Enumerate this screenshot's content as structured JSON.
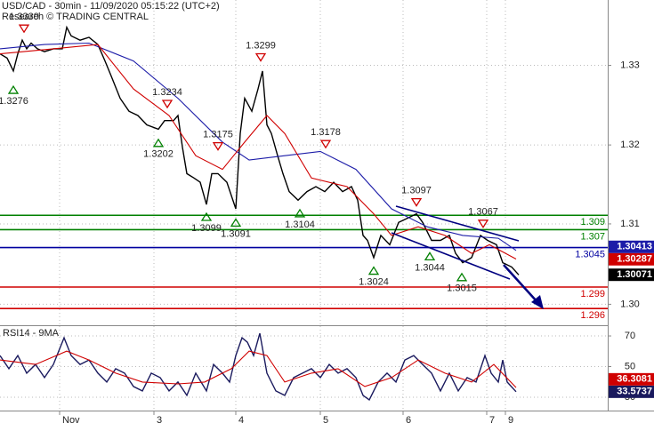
{
  "chart_data": [
    {
      "type": "line",
      "title": "USD/CAD - 30min - 11/09/2020 05:15:22 (UTC+2)",
      "subtitle": "Research © TRADING CENTRAL",
      "xlim": [
        0,
        341.5
      ],
      "ylim": [
        1.2938,
        1.339
      ],
      "yticks": [
        {
          "value": 1.3299,
          "label": "1.33"
        },
        {
          "value": 1.3188,
          "label": "1.32"
        },
        {
          "value": 1.3078,
          "label": "1.31"
        },
        {
          "value": 1.2966,
          "label": "1.30"
        }
      ],
      "grid": true,
      "series": [
        {
          "color": "#000000",
          "last_value": 1.30071,
          "x": [
            0,
            4,
            7.5,
            10,
            12.5,
            15,
            17.5,
            21,
            25,
            30,
            35,
            37.5,
            40,
            45,
            50,
            55,
            59,
            62.5,
            67.5,
            72.5,
            77.5,
            82.5,
            89,
            92.5,
            97.5,
            100,
            102.5,
            105,
            109,
            112.5,
            116,
            119,
            122.5,
            127.5,
            132.5,
            135,
            137.5,
            141.5,
            145,
            147.5,
            150,
            152.5,
            156,
            159,
            162.5,
            167.5,
            172.5,
            177.5,
            182.5,
            187.5,
            192.5,
            197.5,
            201,
            204,
            206.5,
            210,
            214,
            219,
            224,
            229,
            234,
            237.5,
            242.5,
            247.5,
            252.5,
            256,
            260,
            265,
            270,
            274,
            279,
            282.5,
            287.5,
            291.5
          ],
          "values": [
            1.3315,
            1.3309,
            1.3291,
            1.3315,
            1.3334,
            1.3322,
            1.333,
            1.3322,
            1.3318,
            1.3322,
            1.3322,
            1.3352,
            1.334,
            1.3334,
            1.3338,
            1.3328,
            1.3305,
            1.3284,
            1.3253,
            1.3235,
            1.3229,
            1.3216,
            1.321,
            1.3222,
            1.3222,
            1.3229,
            1.3185,
            1.3148,
            1.3142,
            1.3136,
            1.3105,
            1.3148,
            1.3148,
            1.3136,
            1.3099,
            1.3204,
            1.3253,
            1.3235,
            1.3266,
            1.3291,
            1.3216,
            1.3204,
            1.3173,
            1.3148,
            1.3123,
            1.3111,
            1.3123,
            1.313,
            1.3123,
            1.3136,
            1.3123,
            1.313,
            1.3111,
            1.3062,
            1.3055,
            1.3031,
            1.3062,
            1.3049,
            1.308,
            1.3086,
            1.3092,
            1.308,
            1.3055,
            1.3055,
            1.3062,
            1.3037,
            1.3024,
            1.3031,
            1.3062,
            1.3055,
            1.3049,
            1.3024,
            1.3018,
            1.3007
          ]
        },
        {
          "color": "#1c1ca8",
          "last_value": 1.30413,
          "x": [
            0,
            25,
            50,
            75,
            100,
            125,
            140,
            160,
            180,
            200,
            220,
            240,
            260,
            280,
            290
          ],
          "values": [
            1.3322,
            1.3328,
            1.333,
            1.3305,
            1.3253,
            1.3192,
            1.3167,
            1.3173,
            1.3179,
            1.3154,
            1.3099,
            1.3074,
            1.3062,
            1.3058,
            1.3041
          ]
        },
        {
          "color": "#d00000",
          "last_value": 1.30287,
          "x": [
            0,
            30,
            55,
            75,
            95,
            110,
            125,
            137.5,
            150,
            160,
            175,
            195,
            210,
            220,
            235,
            250,
            265,
            275,
            290
          ],
          "values": [
            1.3315,
            1.3322,
            1.3328,
            1.3266,
            1.3229,
            1.3173,
            1.3154,
            1.3192,
            1.3229,
            1.3204,
            1.3142,
            1.313,
            1.3092,
            1.3062,
            1.3074,
            1.3062,
            1.3037,
            1.3049,
            1.3029
          ]
        }
      ],
      "levels": [
        {
          "value": 1.309,
          "color": "#008000"
        },
        {
          "value": 1.307,
          "color": "#008000"
        },
        {
          "value": 1.3045,
          "color": "#0000a0"
        },
        {
          "value": 1.299,
          "color": "#d00000"
        },
        {
          "value": 1.296,
          "color": "#d00000"
        }
      ],
      "swing_highs": {
        "color": "#d00000",
        "x": [
          13.5,
          94,
          122.5,
          146.5,
          183,
          234,
          271.5
        ],
        "values": [
          1.3339,
          1.3234,
          1.3175,
          1.3299,
          1.3178,
          1.3097,
          1.3067
        ]
      },
      "swing_lows": {
        "color": "#008000",
        "x": [
          7.5,
          89,
          116,
          132.5,
          168.5,
          210,
          241.5,
          259.5
        ],
        "values": [
          1.3276,
          1.3202,
          1.3099,
          1.3091,
          1.3104,
          1.3024,
          1.3044,
          1.3015
        ]
      }
    },
    {
      "type": "line",
      "title": "RSI14 - 9MA",
      "xlim": [
        0,
        341.5
      ],
      "ylim": [
        21.3,
        76.4
      ],
      "yticks": [
        70,
        50,
        30
      ],
      "xticks": [
        {
          "value": 33.5,
          "label": "Nov"
        },
        {
          "value": 86.5,
          "label": "3"
        },
        {
          "value": 132.5,
          "label": "4"
        },
        {
          "value": 180,
          "label": "5"
        },
        {
          "value": 226.5,
          "label": "6"
        },
        {
          "value": 273.5,
          "label": "7"
        },
        {
          "value": 284,
          "label": "9"
        }
      ],
      "grid": true,
      "series": [
        {
          "color": "#1a1a5e",
          "last_value": 33.5737,
          "x": [
            0,
            5,
            10,
            15,
            20,
            25,
            30,
            36,
            40,
            45,
            50,
            55,
            60,
            65,
            70,
            75,
            80,
            85,
            90,
            95,
            100,
            105,
            110,
            116,
            120,
            125,
            129,
            132.5,
            136,
            139,
            142.5,
            146,
            150,
            155,
            160,
            165,
            170,
            175,
            180,
            185,
            190,
            195,
            200,
            204,
            207.5,
            212.5,
            217.5,
            222.5,
            227.5,
            232.5,
            237.5,
            242.5,
            247.5,
            252.5,
            257.5,
            262.5,
            267.5,
            272.5,
            276,
            280,
            282.5,
            285,
            290
          ],
          "values": [
            57.2,
            48.6,
            57.2,
            45.7,
            51.4,
            42.8,
            51.4,
            68.8,
            57.2,
            51.4,
            54.3,
            45.7,
            39.9,
            48.6,
            45.7,
            37.0,
            34.1,
            45.7,
            42.8,
            34.1,
            39.9,
            31.2,
            45.7,
            34.1,
            51.4,
            45.7,
            39.9,
            57.2,
            68.8,
            65.9,
            57.2,
            71.7,
            45.7,
            34.1,
            31.2,
            42.8,
            45.7,
            48.6,
            42.8,
            51.4,
            45.7,
            48.6,
            42.8,
            31.2,
            28.3,
            39.9,
            45.7,
            39.9,
            54.3,
            57.2,
            51.4,
            45.7,
            34.1,
            45.7,
            34.1,
            42.8,
            39.9,
            57.2,
            45.7,
            39.9,
            54.3,
            39.9,
            33.6
          ]
        },
        {
          "color": "#d00000",
          "last_value": 36.3081,
          "x": [
            0,
            20,
            37.5,
            50,
            65,
            80,
            100,
            115,
            130,
            140,
            150,
            160,
            175,
            190,
            205,
            220,
            235,
            250,
            265,
            277.5,
            290
          ],
          "values": [
            54.3,
            51.4,
            60.1,
            54.3,
            45.7,
            39.9,
            38.7,
            39.9,
            48.6,
            60.1,
            57.2,
            39.9,
            45.7,
            48.6,
            37.0,
            42.8,
            54.3,
            45.7,
            39.9,
            51.4,
            36.3
          ]
        }
      ]
    }
  ]
}
